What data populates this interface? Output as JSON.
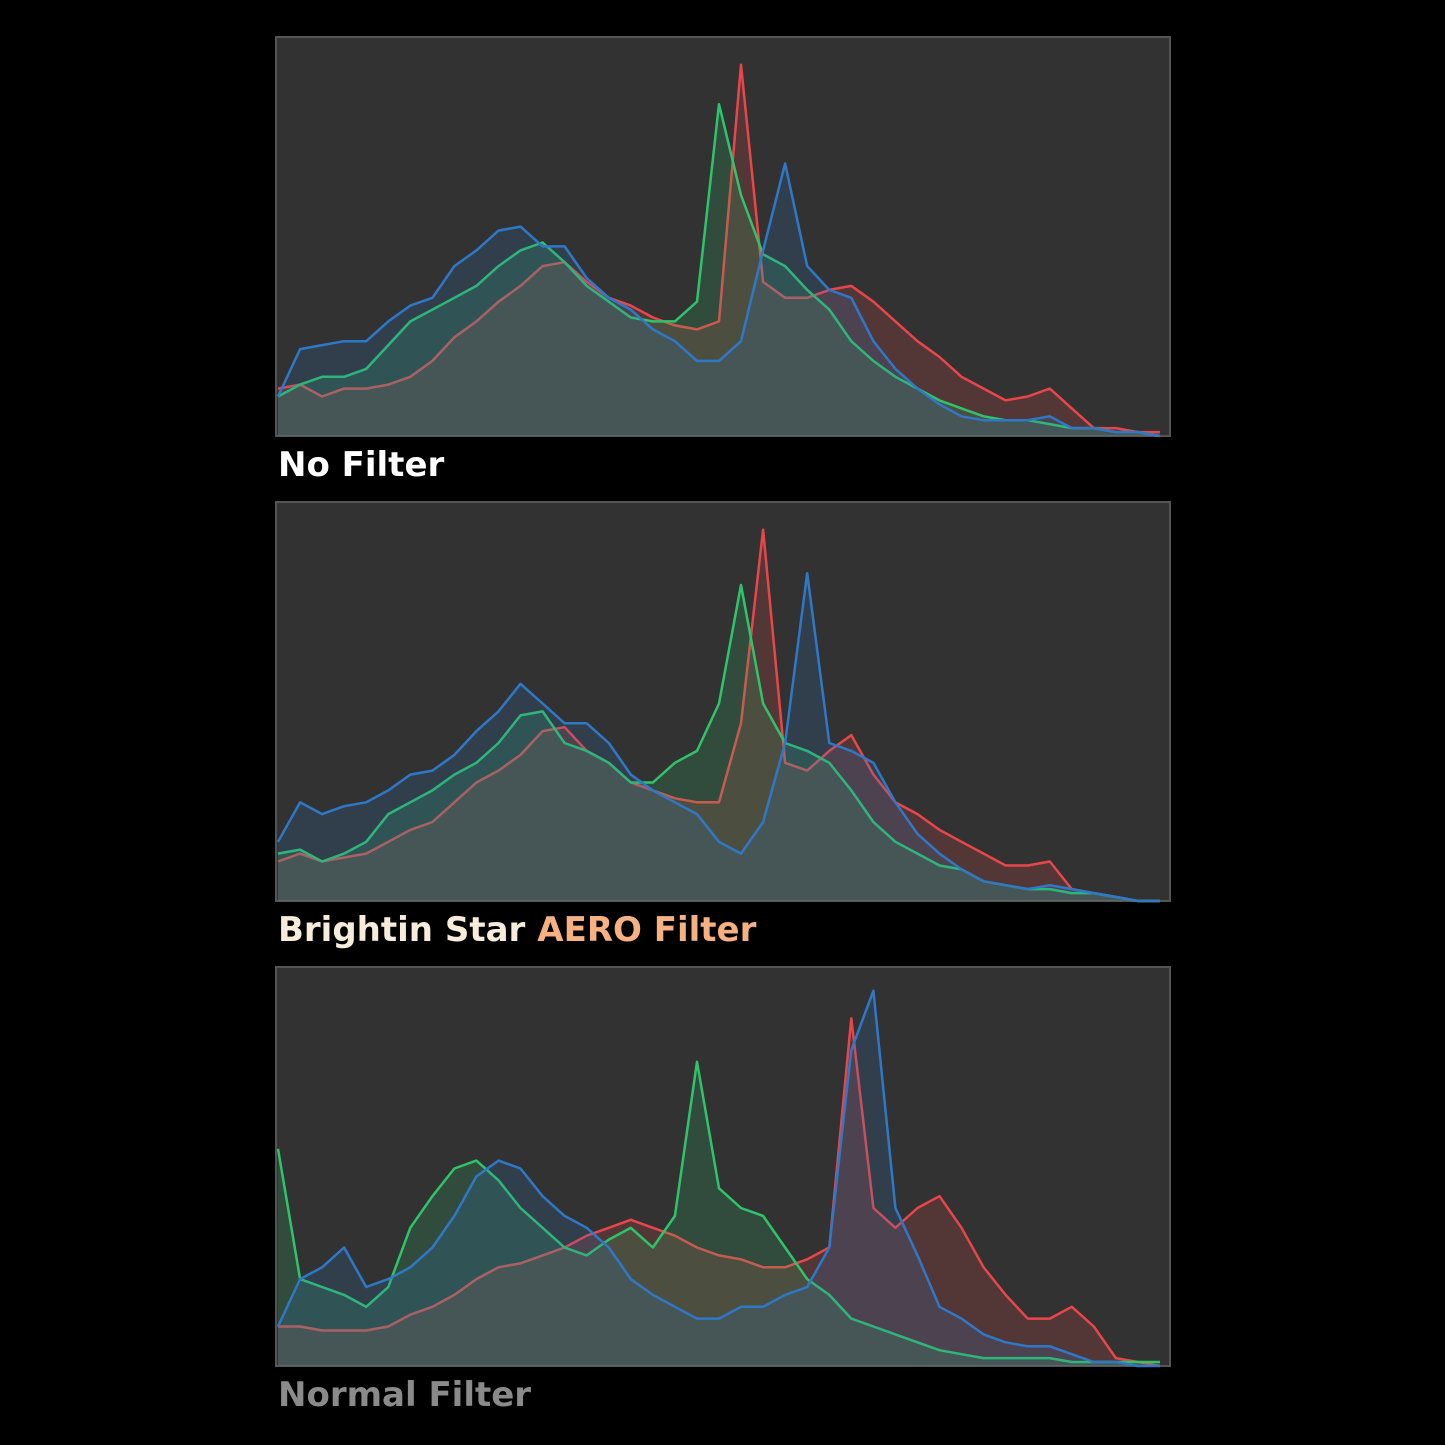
{
  "chart_data": [
    {
      "type": "area",
      "title": "No Filter",
      "title_color": "#ffffff",
      "ylim": [
        0,
        100
      ],
      "series": [
        {
          "name": "Red",
          "color": "#e8464a",
          "values": [
            12,
            13,
            10,
            12,
            12,
            13,
            15,
            19,
            25,
            29,
            34,
            38,
            43,
            44,
            39,
            35,
            33,
            30,
            28,
            27,
            29,
            94,
            39,
            35,
            35,
            37,
            38,
            34,
            29,
            24,
            20,
            15,
            12,
            9,
            10,
            12,
            7,
            2,
            2,
            1,
            1
          ]
        },
        {
          "name": "Green",
          "color": "#2fc46a",
          "values": [
            10,
            13,
            15,
            15,
            17,
            23,
            29,
            32,
            35,
            38,
            43,
            47,
            49,
            44,
            38,
            34,
            30,
            29,
            29,
            34,
            84,
            61,
            46,
            43,
            37,
            32,
            24,
            19,
            15,
            12,
            9,
            7,
            5,
            4,
            4,
            3,
            2,
            2,
            1,
            1,
            0
          ]
        },
        {
          "name": "Blue",
          "color": "#2f78c8",
          "values": [
            10,
            22,
            23,
            24,
            24,
            29,
            33,
            35,
            43,
            47,
            52,
            53,
            48,
            48,
            40,
            35,
            32,
            27,
            24,
            19,
            19,
            24,
            47,
            69,
            43,
            37,
            35,
            24,
            17,
            12,
            8,
            5,
            4,
            4,
            4,
            5,
            2,
            2,
            1,
            1,
            0
          ]
        }
      ]
    },
    {
      "type": "area",
      "title": [
        "Brightin Star",
        "AERO Filter"
      ],
      "title_color": [
        "#f7ecd9",
        "#f6b183"
      ],
      "ylim": [
        0,
        100
      ],
      "series": [
        {
          "name": "Red",
          "color": "#e8464a",
          "values": [
            10,
            12,
            10,
            11,
            12,
            15,
            18,
            20,
            25,
            30,
            33,
            37,
            43,
            44,
            38,
            35,
            30,
            28,
            26,
            25,
            25,
            45,
            94,
            35,
            33,
            38,
            42,
            32,
            25,
            22,
            18,
            15,
            12,
            9,
            9,
            10,
            3,
            2,
            1,
            0,
            0
          ]
        },
        {
          "name": "Green",
          "color": "#2fc46a",
          "values": [
            12,
            13,
            10,
            12,
            15,
            22,
            25,
            28,
            32,
            35,
            40,
            47,
            48,
            40,
            38,
            35,
            30,
            30,
            35,
            38,
            50,
            80,
            50,
            40,
            38,
            35,
            28,
            20,
            15,
            12,
            9,
            8,
            5,
            4,
            3,
            3,
            2,
            2,
            1,
            0,
            0
          ]
        },
        {
          "name": "Blue",
          "color": "#2f78c8",
          "values": [
            15,
            25,
            22,
            24,
            25,
            28,
            32,
            33,
            37,
            43,
            48,
            55,
            50,
            45,
            45,
            40,
            32,
            28,
            25,
            22,
            15,
            12,
            20,
            40,
            83,
            40,
            38,
            35,
            25,
            17,
            12,
            8,
            5,
            4,
            3,
            4,
            3,
            2,
            1,
            0,
            0
          ]
        }
      ]
    },
    {
      "type": "area",
      "title": "Normal Filter",
      "title_color": "#8a8a8a",
      "ylim": [
        0,
        100
      ],
      "series": [
        {
          "name": "Red",
          "color": "#e8464a",
          "values": [
            10,
            10,
            9,
            9,
            9,
            10,
            13,
            15,
            18,
            22,
            25,
            26,
            28,
            30,
            33,
            35,
            37,
            35,
            33,
            30,
            28,
            27,
            25,
            25,
            27,
            30,
            88,
            40,
            35,
            40,
            43,
            35,
            25,
            18,
            12,
            12,
            15,
            10,
            2,
            1,
            0
          ]
        },
        {
          "name": "Green",
          "color": "#2fc46a",
          "values": [
            55,
            22,
            20,
            18,
            15,
            20,
            35,
            43,
            50,
            52,
            47,
            40,
            35,
            30,
            28,
            32,
            35,
            30,
            38,
            77,
            45,
            40,
            38,
            30,
            22,
            18,
            12,
            10,
            8,
            6,
            4,
            3,
            2,
            2,
            2,
            2,
            1,
            1,
            1,
            1,
            1
          ]
        },
        {
          "name": "Blue",
          "color": "#2f78c8",
          "values": [
            10,
            22,
            25,
            30,
            20,
            22,
            25,
            30,
            38,
            48,
            52,
            50,
            43,
            38,
            35,
            30,
            22,
            18,
            15,
            12,
            12,
            15,
            15,
            18,
            20,
            30,
            80,
            95,
            40,
            28,
            15,
            12,
            8,
            6,
            5,
            5,
            3,
            1,
            1,
            0,
            0
          ]
        }
      ]
    }
  ]
}
